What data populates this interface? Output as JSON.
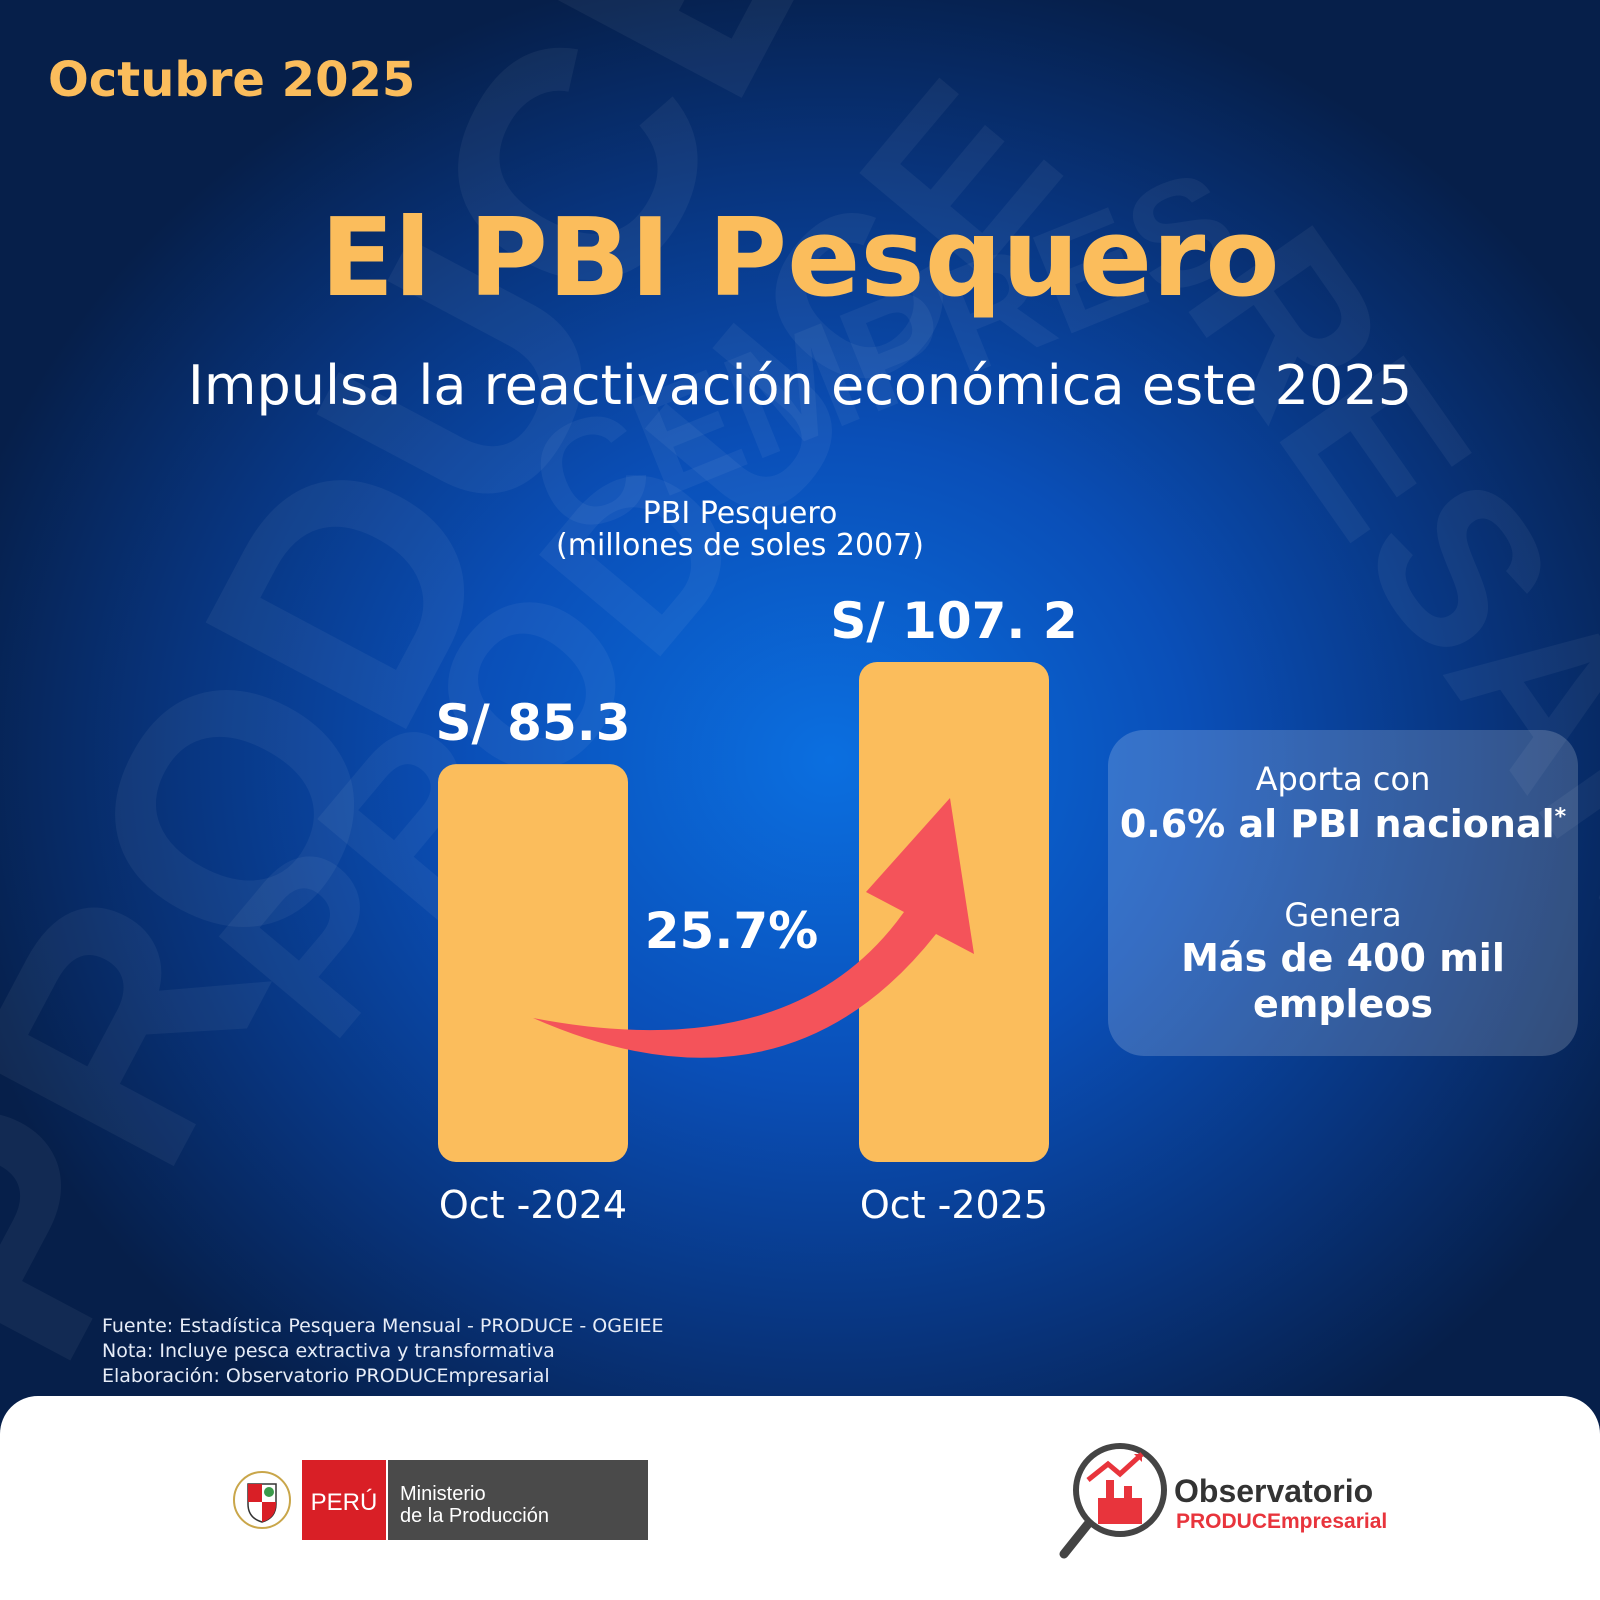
{
  "header": {
    "date": "Octubre 2025",
    "title": "El PBI Pesquero",
    "subtitle": "Impulsa la reactivación económica este 2025"
  },
  "chart_data": {
    "type": "bar",
    "title_line1": "PBI Pesquero",
    "title_line2": "(millones de soles 2007)",
    "categories": [
      "Oct -2024",
      "Oct -2025"
    ],
    "values": [
      85.3,
      107.2
    ],
    "value_labels": [
      "S/ 85.3",
      "S/ 107. 2"
    ],
    "growth_label": "25.7%",
    "bar_color": "#fbbd5c",
    "arrow_color": "#f4535a",
    "ylim": [
      0,
      107.2
    ]
  },
  "info": {
    "line1": "Aporta con",
    "line2": "0.6% al PBI nacional",
    "line2_mark": "*",
    "line3": "Genera",
    "line4a": "Más de 400 mil",
    "line4b": "empleos"
  },
  "footer": {
    "source": "Fuente: Estadística Pesquera Mensual - PRODUCE - OGEIEE",
    "note": "Nota: Incluye pesca extractiva y transformativa",
    "credit": "Elaboración: Observatorio PRODUCEmpresarial"
  },
  "logos": {
    "peru_label": "PERÚ",
    "ministry_line1": "Ministerio",
    "ministry_line2": "de la Producción",
    "observatorio_line1": "Observatorio",
    "observatorio_line2": "PRODUCEmpresarial",
    "peru_red": "#d91f26",
    "ministry_gray": "#4a4a4a",
    "observatorio_red": "#e8343c"
  },
  "watermark": "PRODUCEMPRESARIAL"
}
